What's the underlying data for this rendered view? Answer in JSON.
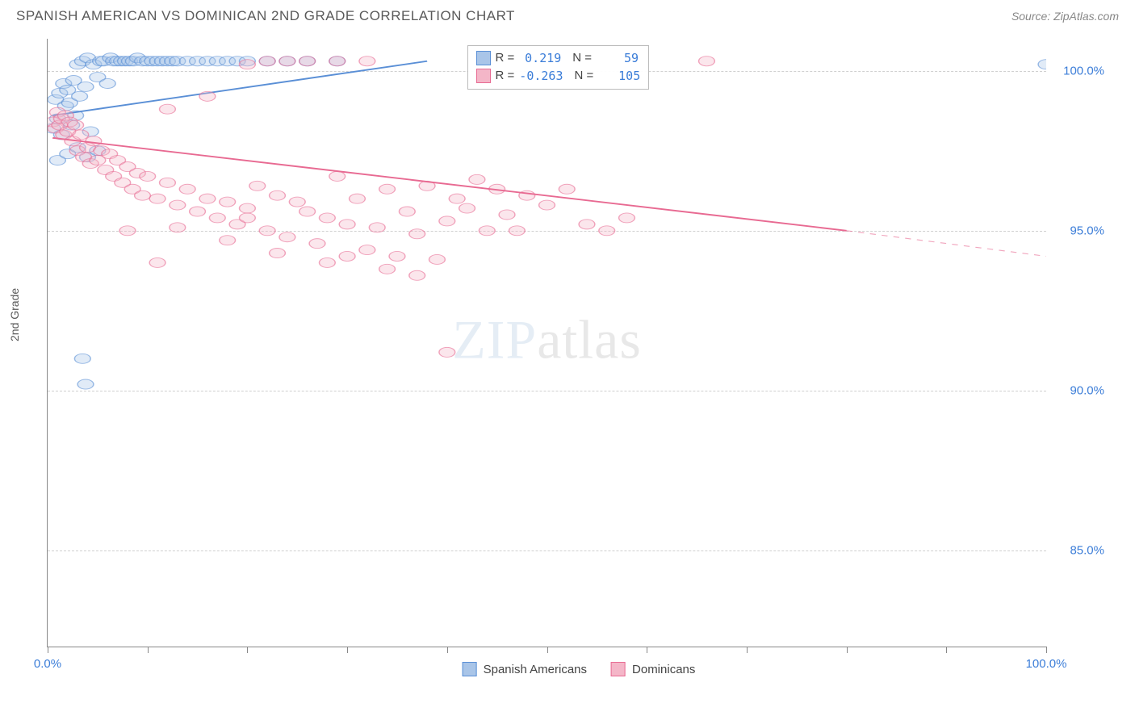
{
  "title": "SPANISH AMERICAN VS DOMINICAN 2ND GRADE CORRELATION CHART",
  "source": "Source: ZipAtlas.com",
  "ylabel": "2nd Grade",
  "watermark_a": "ZIP",
  "watermark_b": "atlas",
  "chart": {
    "type": "scatter",
    "background": "#ffffff",
    "grid_color": "#d0d0d0",
    "axis_color": "#888888",
    "xlim": [
      0,
      100
    ],
    "ylim": [
      82,
      101
    ],
    "x_ticks": [
      0,
      10,
      20,
      30,
      40,
      50,
      60,
      70,
      80,
      90,
      100
    ],
    "x_tick_labels": {
      "0": "0.0%",
      "100": "100.0%"
    },
    "x_label_color": "#3b7dd8",
    "y_gridlines": [
      85,
      90,
      95,
      100
    ],
    "y_tick_labels": {
      "85": "85.0%",
      "90": "90.0%",
      "95": "95.0%",
      "100": "100.0%"
    },
    "y_label_color": "#3b7dd8",
    "marker_radius": 8,
    "marker_opacity": 0.35,
    "marker_stroke_opacity": 0.6,
    "series": [
      {
        "id": "spanish",
        "label": "Spanish Americans",
        "color": "#5a8fd6",
        "fill": "#a9c5e8",
        "R": "0.219",
        "N": "59",
        "trend": {
          "x1": 0.5,
          "y1": 98.6,
          "x2": 38,
          "y2": 100.3,
          "dash_from_x": null
        },
        "points": [
          [
            0.5,
            98.2
          ],
          [
            0.8,
            99.1
          ],
          [
            1.0,
            98.5
          ],
          [
            1.2,
            99.3
          ],
          [
            1.4,
            98.0
          ],
          [
            1.6,
            99.6
          ],
          [
            1.8,
            98.9
          ],
          [
            2.0,
            99.4
          ],
          [
            2.2,
            99.0
          ],
          [
            2.4,
            98.3
          ],
          [
            2.6,
            99.7
          ],
          [
            2.8,
            98.6
          ],
          [
            3.0,
            100.2
          ],
          [
            3.2,
            99.2
          ],
          [
            3.5,
            100.3
          ],
          [
            3.8,
            99.5
          ],
          [
            4.0,
            100.4
          ],
          [
            4.3,
            98.1
          ],
          [
            4.6,
            100.2
          ],
          [
            5.0,
            99.8
          ],
          [
            5.3,
            100.3
          ],
          [
            5.6,
            100.3
          ],
          [
            6.0,
            99.6
          ],
          [
            6.3,
            100.4
          ],
          [
            6.6,
            100.3
          ],
          [
            7.0,
            100.3
          ],
          [
            7.4,
            100.3
          ],
          [
            7.8,
            100.3
          ],
          [
            8.2,
            100.3
          ],
          [
            8.6,
            100.3
          ],
          [
            9.0,
            100.4
          ],
          [
            9.5,
            100.3
          ],
          [
            10,
            100.3
          ],
          [
            10.5,
            100.3
          ],
          [
            11,
            100.3
          ],
          [
            11.5,
            100.3
          ],
          [
            12,
            100.3
          ],
          [
            12.5,
            100.3
          ],
          [
            13,
            100.3
          ],
          [
            14,
            100.3
          ],
          [
            15,
            100.3
          ],
          [
            16,
            100.3
          ],
          [
            17,
            100.3
          ],
          [
            18,
            100.3
          ],
          [
            19,
            100.3
          ],
          [
            20,
            100.3
          ],
          [
            22,
            100.3
          ],
          [
            24,
            100.3
          ],
          [
            26,
            100.3
          ],
          [
            29,
            100.3
          ],
          [
            1.0,
            97.2
          ],
          [
            2.0,
            97.4
          ],
          [
            3.0,
            97.6
          ],
          [
            4.0,
            97.3
          ],
          [
            5,
            97.5
          ],
          [
            3.5,
            91.0
          ],
          [
            3.8,
            90.2
          ],
          [
            100,
            100.2
          ]
        ]
      },
      {
        "id": "dominican",
        "label": "Dominicans",
        "color": "#e86a92",
        "fill": "#f4b6c8",
        "R": "-0.263",
        "N": "105",
        "trend": {
          "x1": 0.5,
          "y1": 97.9,
          "x2": 80,
          "y2": 95.0,
          "dash_from_x": 80,
          "dash_x2": 100,
          "dash_y2": 94.2
        },
        "points": [
          [
            0.5,
            98.4
          ],
          [
            0.8,
            98.2
          ],
          [
            1.0,
            98.7
          ],
          [
            1.2,
            98.3
          ],
          [
            1.4,
            98.5
          ],
          [
            1.6,
            98.0
          ],
          [
            1.8,
            98.6
          ],
          [
            2.0,
            98.1
          ],
          [
            2.2,
            98.4
          ],
          [
            2.5,
            97.8
          ],
          [
            2.8,
            98.3
          ],
          [
            3.0,
            97.5
          ],
          [
            3.3,
            98.0
          ],
          [
            3.6,
            97.3
          ],
          [
            4.0,
            97.6
          ],
          [
            4.3,
            97.1
          ],
          [
            4.6,
            97.8
          ],
          [
            5.0,
            97.2
          ],
          [
            5.4,
            97.5
          ],
          [
            5.8,
            96.9
          ],
          [
            6.2,
            97.4
          ],
          [
            6.6,
            96.7
          ],
          [
            7.0,
            97.2
          ],
          [
            7.5,
            96.5
          ],
          [
            8.0,
            97.0
          ],
          [
            8.5,
            96.3
          ],
          [
            9.0,
            96.8
          ],
          [
            9.5,
            96.1
          ],
          [
            10,
            96.7
          ],
          [
            11,
            96.0
          ],
          [
            12,
            96.5
          ],
          [
            13,
            95.8
          ],
          [
            14,
            96.3
          ],
          [
            15,
            95.6
          ],
          [
            16,
            96.0
          ],
          [
            17,
            95.4
          ],
          [
            18,
            95.9
          ],
          [
            19,
            95.2
          ],
          [
            20,
            95.7
          ],
          [
            21,
            96.4
          ],
          [
            22,
            95.0
          ],
          [
            23,
            96.1
          ],
          [
            24,
            94.8
          ],
          [
            25,
            95.9
          ],
          [
            26,
            95.6
          ],
          [
            27,
            94.6
          ],
          [
            28,
            95.4
          ],
          [
            29,
            96.7
          ],
          [
            30,
            95.2
          ],
          [
            31,
            96.0
          ],
          [
            32,
            94.4
          ],
          [
            33,
            95.1
          ],
          [
            34,
            96.3
          ],
          [
            35,
            94.2
          ],
          [
            36,
            95.6
          ],
          [
            37,
            94.9
          ],
          [
            38,
            96.4
          ],
          [
            39,
            94.1
          ],
          [
            40,
            95.3
          ],
          [
            41,
            96.0
          ],
          [
            42,
            95.7
          ],
          [
            43,
            96.6
          ],
          [
            44,
            95.0
          ],
          [
            45,
            96.3
          ],
          [
            46,
            95.5
          ],
          [
            47,
            95.0
          ],
          [
            48,
            96.1
          ],
          [
            50,
            95.8
          ],
          [
            52,
            96.3
          ],
          [
            54,
            95.2
          ],
          [
            56,
            95.0
          ],
          [
            58,
            95.4
          ],
          [
            8,
            95.0
          ],
          [
            13,
            95.1
          ],
          [
            18,
            94.7
          ],
          [
            23,
            94.3
          ],
          [
            28,
            94.0
          ],
          [
            30,
            94.2
          ],
          [
            12,
            98.8
          ],
          [
            16,
            99.2
          ],
          [
            20,
            100.2
          ],
          [
            22,
            100.3
          ],
          [
            24,
            100.3
          ],
          [
            26,
            100.3
          ],
          [
            29,
            100.3
          ],
          [
            32,
            100.3
          ],
          [
            20,
            95.4
          ],
          [
            40,
            91.2
          ],
          [
            66,
            100.3
          ],
          [
            11,
            94.0
          ],
          [
            34,
            93.8
          ],
          [
            37,
            93.6
          ]
        ]
      }
    ],
    "legend_box": {
      "left_pct": 42,
      "top_pct": 1
    },
    "stat_labels": {
      "R": "R =",
      "N": "N ="
    }
  },
  "bottom_legend": [
    {
      "label": "Spanish Americans",
      "color": "#5a8fd6",
      "fill": "#a9c5e8"
    },
    {
      "label": "Dominicans",
      "color": "#e86a92",
      "fill": "#f4b6c8"
    }
  ]
}
